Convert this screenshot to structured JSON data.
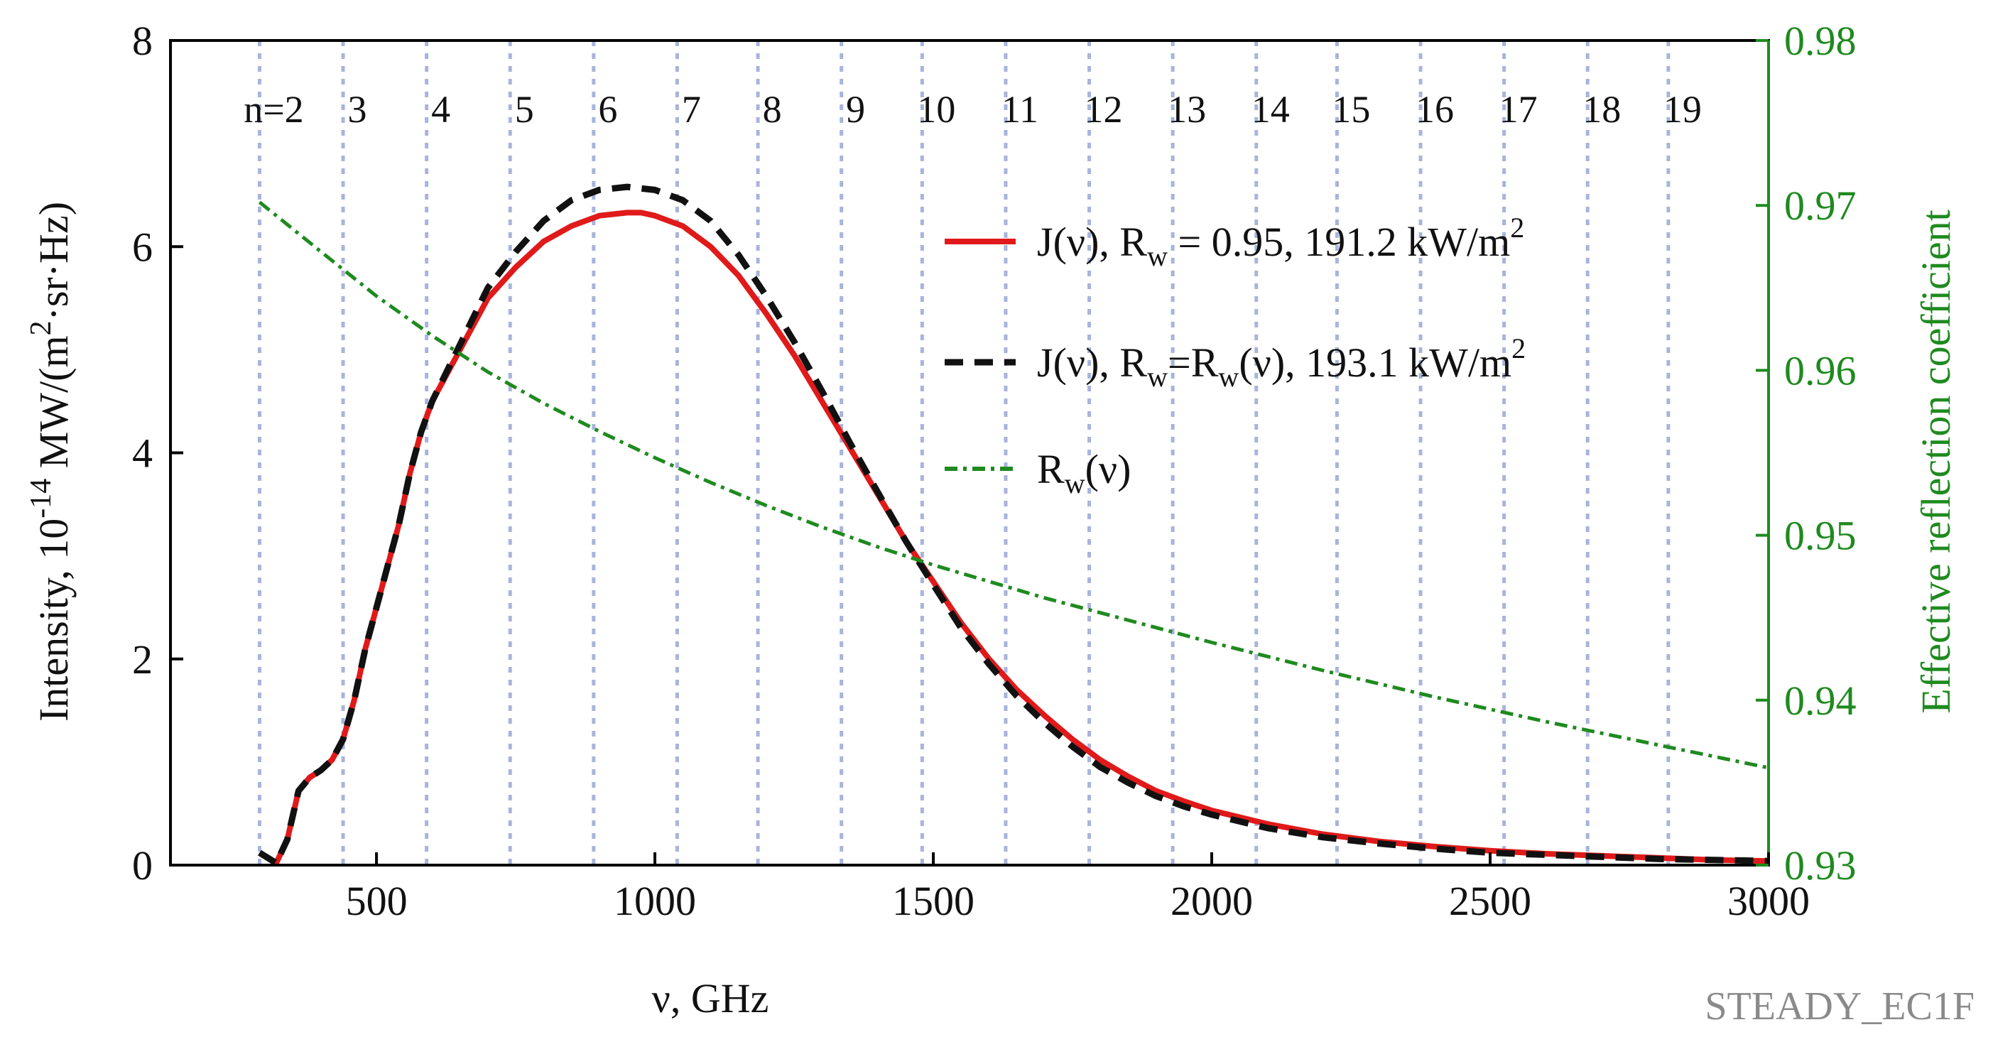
{
  "chart_data": {
    "type": "line",
    "xlabel": "ν, GHz",
    "ylabel": "Intensity, 10⁻¹⁴ MW/(m²·sr·Hz)",
    "ylabel_right": "Effective reflection coefficient",
    "xlim": [
      130,
      3000
    ],
    "ylim": [
      0,
      8
    ],
    "ylim_right": [
      0.93,
      0.98
    ],
    "x_ticks": [
      500,
      1000,
      1500,
      2000,
      2500,
      3000
    ],
    "y_ticks": [
      0,
      2,
      4,
      6,
      8
    ],
    "y_ticks_right": [
      0.93,
      0.94,
      0.95,
      0.96,
      0.97,
      0.98
    ],
    "x_tick_labels": [
      "500",
      "1000",
      "1500",
      "2000",
      "2500",
      "3000"
    ],
    "y_tick_labels": [
      "0",
      "2",
      "4",
      "6",
      "8"
    ],
    "y_tick_labels_right": [
      "0.93",
      "0.94",
      "0.95",
      "0.96",
      "0.97",
      "0.98"
    ],
    "harmonics": {
      "labels": [
        "n=2",
        "3",
        "4",
        "5",
        "6",
        "7",
        "8",
        "9",
        "10",
        "11",
        "12",
        "13",
        "14",
        "15",
        "16",
        "17",
        "18",
        "19"
      ],
      "line_positions_ghz": [
        290,
        440,
        590,
        740,
        890,
        1040,
        1185,
        1335,
        1480,
        1630,
        1780,
        1930,
        2080,
        2225,
        2375,
        2525,
        2675,
        2820
      ]
    },
    "series": [
      {
        "name": "J(ν), R_w = 0.95, 191.2 kW/m²",
        "axis": "left",
        "color": "#e01a1a",
        "style": "solid",
        "x": [
          290,
          320,
          340,
          360,
          380,
          400,
          420,
          440,
          460,
          480,
          500,
          520,
          540,
          560,
          580,
          600,
          650,
          700,
          750,
          800,
          850,
          900,
          950,
          975,
          1000,
          1050,
          1100,
          1150,
          1200,
          1250,
          1300,
          1350,
          1400,
          1450,
          1500,
          1550,
          1600,
          1650,
          1700,
          1750,
          1800,
          1850,
          1900,
          1950,
          2000,
          2100,
          2200,
          2300,
          2400,
          2500,
          2600,
          2700,
          2800,
          2900,
          3000
        ],
        "values": [
          0.12,
          0.02,
          0.25,
          0.72,
          0.85,
          0.92,
          1.02,
          1.22,
          1.6,
          2.1,
          2.5,
          2.9,
          3.3,
          3.8,
          4.2,
          4.5,
          5.0,
          5.5,
          5.8,
          6.05,
          6.2,
          6.3,
          6.33,
          6.33,
          6.3,
          6.2,
          6.0,
          5.72,
          5.35,
          4.95,
          4.5,
          4.05,
          3.6,
          3.15,
          2.75,
          2.35,
          2.0,
          1.7,
          1.45,
          1.22,
          1.02,
          0.86,
          0.72,
          0.62,
          0.53,
          0.4,
          0.3,
          0.23,
          0.18,
          0.14,
          0.11,
          0.09,
          0.07,
          0.05,
          0.04
        ]
      },
      {
        "name": "J(ν), R_w=R_w(ν), 193.1 kW/m²",
        "axis": "left",
        "color": "#111111",
        "style": "dashed",
        "x": [
          290,
          320,
          340,
          360,
          380,
          400,
          420,
          440,
          460,
          480,
          500,
          520,
          540,
          560,
          580,
          600,
          650,
          700,
          750,
          800,
          850,
          900,
          950,
          1000,
          1050,
          1100,
          1150,
          1200,
          1250,
          1300,
          1350,
          1400,
          1450,
          1500,
          1550,
          1600,
          1650,
          1700,
          1750,
          1800,
          1850,
          1900,
          1950,
          2000,
          2100,
          2200,
          2300,
          2400,
          2500,
          2600,
          2700,
          2800,
          2900,
          3000
        ],
        "values": [
          0.12,
          0.02,
          0.25,
          0.72,
          0.85,
          0.92,
          1.02,
          1.22,
          1.6,
          2.1,
          2.5,
          2.9,
          3.3,
          3.8,
          4.2,
          4.5,
          5.05,
          5.6,
          5.95,
          6.25,
          6.45,
          6.55,
          6.58,
          6.55,
          6.45,
          6.25,
          5.92,
          5.52,
          5.08,
          4.6,
          4.1,
          3.62,
          3.15,
          2.72,
          2.3,
          1.95,
          1.64,
          1.38,
          1.15,
          0.95,
          0.8,
          0.67,
          0.57,
          0.49,
          0.36,
          0.27,
          0.21,
          0.16,
          0.12,
          0.1,
          0.08,
          0.06,
          0.05,
          0.04
        ]
      },
      {
        "name": "R_w(ν)",
        "axis": "right",
        "color": "#1f8a1f",
        "style": "dashdot",
        "x": [
          290,
          400,
          500,
          600,
          700,
          800,
          900,
          1000,
          1100,
          1200,
          1300,
          1400,
          1500,
          1600,
          1700,
          1800,
          1900,
          2000,
          2200,
          2400,
          2600,
          2800,
          3000
        ],
        "values": [
          0.9702,
          0.9672,
          0.9645,
          0.9621,
          0.9599,
          0.958,
          0.9563,
          0.9547,
          0.9532,
          0.9518,
          0.9505,
          0.9493,
          0.9482,
          0.9472,
          0.9462,
          0.9453,
          0.9444,
          0.9435,
          0.9418,
          0.9402,
          0.9387,
          0.9373,
          0.9359
        ]
      }
    ],
    "legend": {
      "position": "top-right",
      "entries": [
        {
          "main": "J(ν), R",
          "sub": "w",
          "rest": " = 0.95, 191.2 kW/m",
          "sup": "2"
        },
        {
          "main": "J(ν), R",
          "sub": "w",
          "mid": "=R",
          "sub2": "w",
          "rest": "(ν), 193.1 kW/m",
          "sup": "2"
        },
        {
          "main": "R",
          "sub": "w",
          "rest": "(ν)"
        }
      ]
    },
    "ylabel_parts": {
      "a": "Intensity, 10",
      "sup1": "-14",
      "b": " MW/(m",
      "sup2": "2",
      "c": "·sr·Hz)"
    },
    "watermark": "STEADY_EC1F"
  }
}
